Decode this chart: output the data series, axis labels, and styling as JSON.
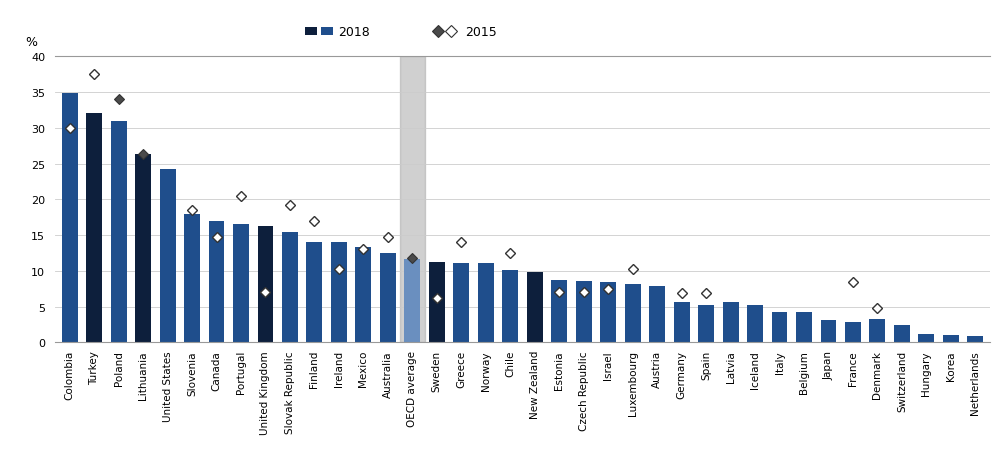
{
  "categories": [
    "Colombia",
    "Turkey",
    "Poland",
    "Lithuania",
    "United States",
    "Slovenia",
    "Canada",
    "Portugal",
    "United Kingdom",
    "Slovak Republic",
    "Finland",
    "Ireland",
    "Mexico",
    "Australia",
    "OECD average",
    "Sweden",
    "Greece",
    "Norway",
    "Chile",
    "New Zealand",
    "Estonia",
    "Czech Republic",
    "Israel",
    "Luxembourg",
    "Austria",
    "Germany",
    "Spain",
    "Latvia",
    "Iceland",
    "Italy",
    "Belgium",
    "Japan",
    "France",
    "Denmark",
    "Switzerland",
    "Hungary",
    "Korea",
    "Netherlands"
  ],
  "values_2018": [
    34.8,
    32.0,
    31.0,
    26.3,
    24.2,
    18.0,
    17.0,
    16.5,
    16.3,
    15.4,
    14.1,
    14.0,
    13.3,
    12.5,
    11.7,
    11.3,
    11.1,
    11.1,
    10.1,
    9.9,
    8.7,
    8.6,
    8.4,
    8.1,
    7.9,
    5.6,
    5.3,
    5.6,
    5.2,
    4.3,
    4.2,
    3.2,
    2.8,
    3.3,
    2.5,
    1.2,
    1.0,
    0.9
  ],
  "values_2015": [
    30.0,
    37.5,
    34.0,
    26.3,
    null,
    18.5,
    14.7,
    20.5,
    7.0,
    19.2,
    17.0,
    10.3,
    13.0,
    14.7,
    11.8,
    6.2,
    14.0,
    null,
    12.5,
    null,
    7.0,
    7.0,
    7.5,
    10.3,
    null,
    6.9,
    6.9,
    null,
    null,
    null,
    null,
    null,
    8.5,
    4.8,
    null,
    null,
    null,
    null
  ],
  "oecd_index": 14,
  "bar_color_normal": "#1f4e8c",
  "bar_color_oecd": "#6a8fbf",
  "bar_color_dark": "#0d1f3c",
  "marker_2015_filled_color": "#4a4a4a",
  "marker_2015_open_color": "white",
  "marker_2015_edge_color": "#333333",
  "oecd_bg_color": "#aaaaaa",
  "ylabel": "%",
  "ylim": [
    0,
    40
  ],
  "yticks": [
    0,
    5,
    10,
    15,
    20,
    25,
    30,
    35,
    40
  ],
  "legend_2018_label": "2018",
  "legend_2015_label": "2015",
  "dark_bars": [
    1,
    3,
    8,
    15,
    19
  ],
  "filled_2015": [
    2,
    3,
    14
  ]
}
